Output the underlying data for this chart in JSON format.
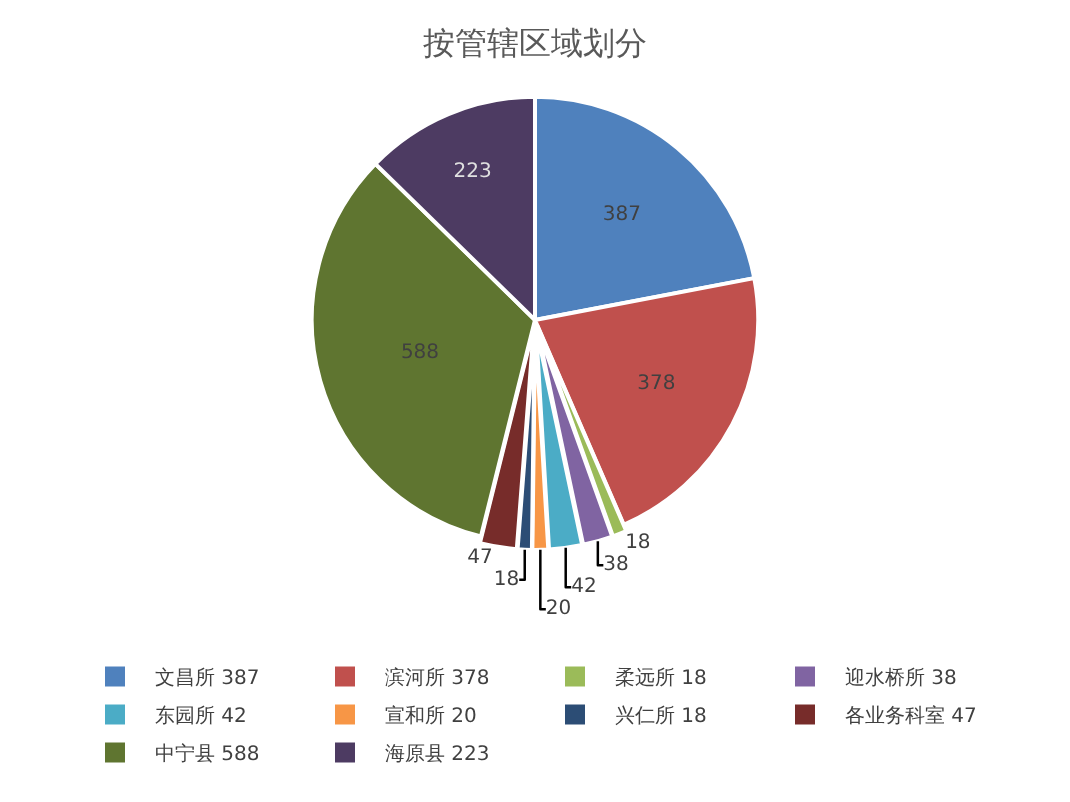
{
  "chart_data": {
    "type": "pie",
    "title": "按管辖区域划分",
    "categories": [
      "文昌所 387",
      "滨河所 378",
      "柔远所 18",
      "迎水桥所 38",
      "东园所 42",
      "宣和所 20",
      "兴仁所 18",
      "各业务科室 47",
      "中宁县 588",
      "海原县 223"
    ],
    "values": [
      387,
      378,
      18,
      38,
      42,
      20,
      18,
      47,
      588,
      223
    ],
    "colors": [
      "#4f81bd",
      "#c0504d",
      "#9bbb59",
      "#8064a2",
      "#4bacc6",
      "#f79646",
      "#2c4d75",
      "#772c2a",
      "#5f7530",
      "#4d3b62"
    ],
    "data_labels": true,
    "legend": "bottom"
  }
}
